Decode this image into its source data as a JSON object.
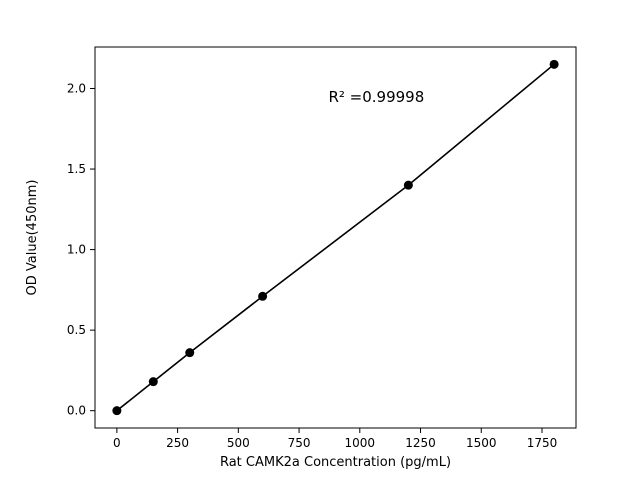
{
  "chart_data": {
    "type": "scatter",
    "title": "",
    "xlabel": "Rat CAMK2a Concentration (pg/mL)",
    "ylabel": "OD Value(450nm)",
    "x": [
      0,
      150,
      300,
      600,
      1200,
      1800
    ],
    "y": [
      0.0,
      0.18,
      0.36,
      0.71,
      1.4,
      2.15
    ],
    "line_through_points": true,
    "annotation": "R² =0.99998",
    "annotation_frac_x": 0.585,
    "annotation_frac_y": 0.145,
    "xticks": [
      0,
      250,
      500,
      750,
      1000,
      1250,
      1500,
      1750
    ],
    "xticklabels": [
      "0",
      "250",
      "500",
      "750",
      "1000",
      "1250",
      "1500",
      "1750"
    ],
    "yticks": [
      0.0,
      0.5,
      1.0,
      1.5,
      2.0
    ],
    "yticklabels": [
      "0.0",
      "0.5",
      "1.0",
      "1.5",
      "2.0"
    ],
    "xlim": [
      -90,
      1890
    ],
    "ylim": [
      -0.1075,
      2.2575
    ],
    "grid": false,
    "legend": "none",
    "line_color": "#000000",
    "marker_color": "#000000",
    "frame_color": "#000000",
    "background": "#ffffff"
  }
}
